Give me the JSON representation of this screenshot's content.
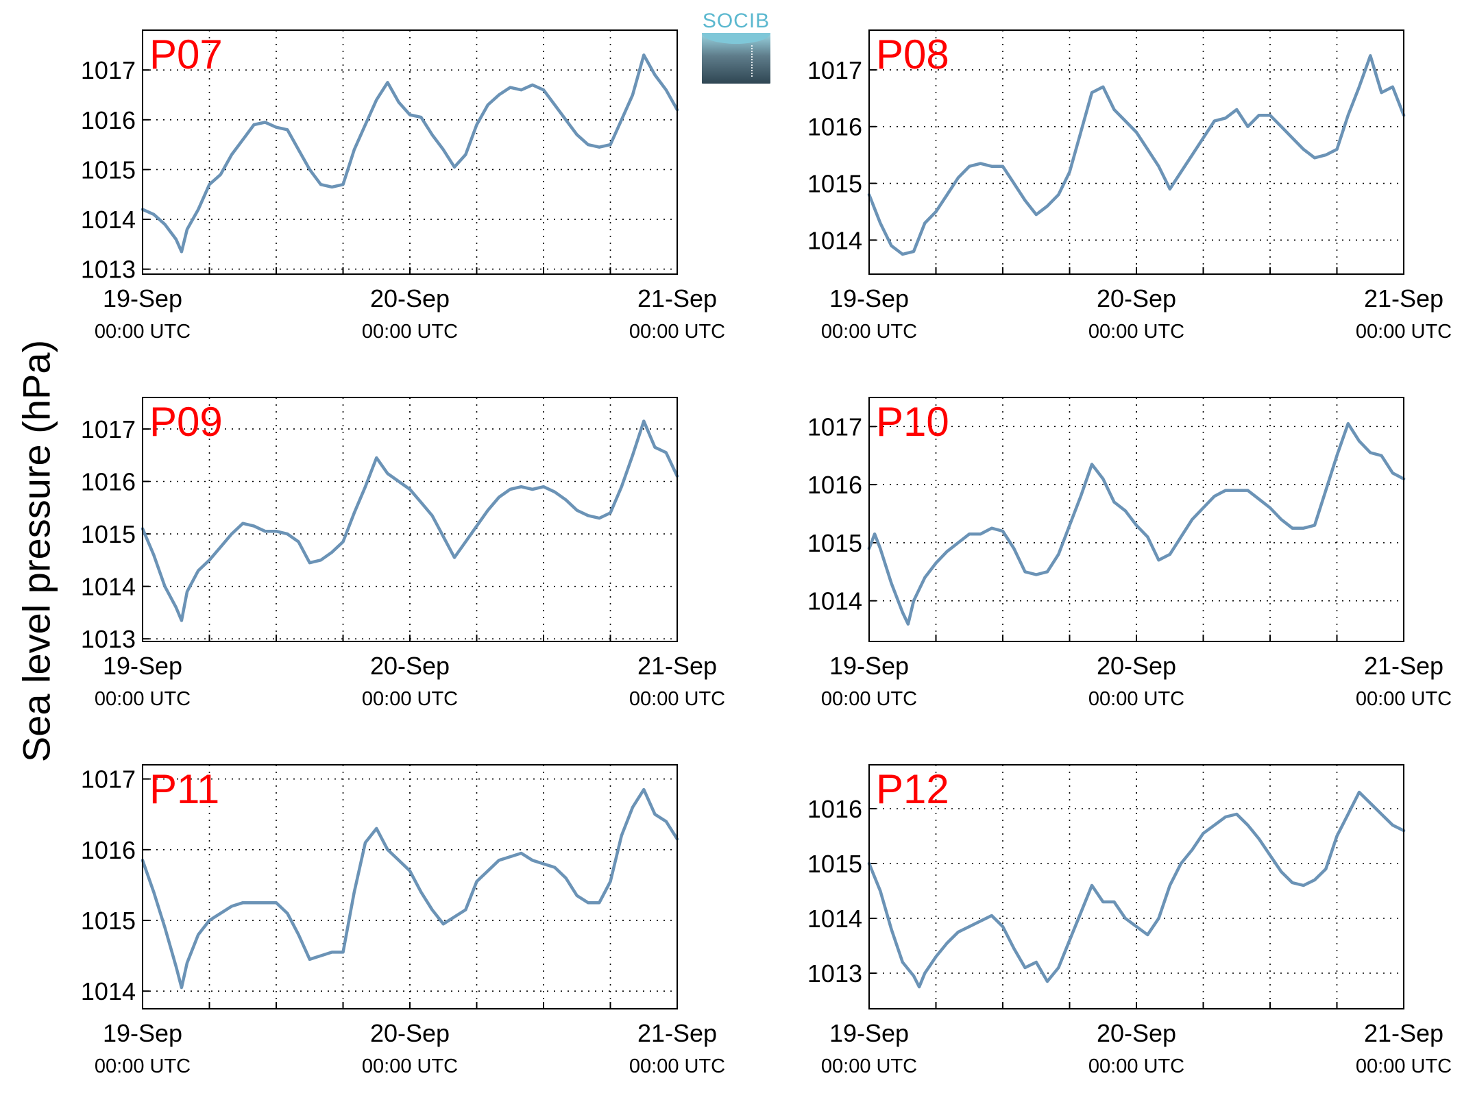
{
  "figure": {
    "ylabel": "Sea level pressure (hPa)",
    "logo_text": "SOCIB"
  },
  "style": {
    "line_color": "#6b93b6",
    "label_color": "#ff0000"
  },
  "chart_data": [
    {
      "type": "line",
      "label": "P07",
      "xlim": [
        0,
        48
      ],
      "ylim": [
        1012.9,
        1017.8
      ],
      "yticks": [
        1013,
        1014,
        1015,
        1016,
        1017
      ],
      "xticks": [
        {
          "x": 0,
          "label": "19-Sep",
          "sub": "00:00 UTC"
        },
        {
          "x": 24,
          "label": "20-Sep",
          "sub": "00:00 UTC"
        },
        {
          "x": 48,
          "label": "21-Sep",
          "sub": "00:00 UTC"
        }
      ],
      "grid_x": [
        6,
        12,
        18,
        24,
        30,
        36,
        42
      ],
      "x": [
        0,
        1,
        2,
        3,
        3.5,
        4,
        5,
        6,
        7,
        8,
        9,
        10,
        11,
        12,
        13,
        14,
        15,
        16,
        17,
        18,
        19,
        20,
        21,
        22,
        23,
        24,
        25,
        26,
        27,
        28,
        29,
        30,
        31,
        32,
        33,
        34,
        35,
        36,
        37,
        38,
        39,
        40,
        41,
        42,
        43,
        44,
        45,
        46,
        47,
        48
      ],
      "values": [
        1014.2,
        1014.1,
        1013.9,
        1013.6,
        1013.35,
        1013.8,
        1014.2,
        1014.7,
        1014.9,
        1015.3,
        1015.6,
        1015.9,
        1015.95,
        1015.85,
        1015.8,
        1015.4,
        1015.0,
        1014.7,
        1014.65,
        1014.7,
        1015.4,
        1015.9,
        1016.4,
        1016.75,
        1016.35,
        1016.1,
        1016.05,
        1015.7,
        1015.4,
        1015.05,
        1015.3,
        1015.9,
        1016.3,
        1016.5,
        1016.65,
        1016.6,
        1016.7,
        1016.6,
        1016.3,
        1016.0,
        1015.7,
        1015.5,
        1015.45,
        1015.5,
        1016.0,
        1016.5,
        1017.3,
        1016.9,
        1016.6,
        1016.2
      ]
    },
    {
      "type": "line",
      "label": "P08",
      "xlim": [
        0,
        48
      ],
      "ylim": [
        1013.4,
        1017.7
      ],
      "yticks": [
        1014,
        1015,
        1016,
        1017
      ],
      "xticks": [
        {
          "x": 0,
          "label": "19-Sep",
          "sub": "00:00 UTC"
        },
        {
          "x": 24,
          "label": "20-Sep",
          "sub": "00:00 UTC"
        },
        {
          "x": 48,
          "label": "21-Sep",
          "sub": "00:00 UTC"
        }
      ],
      "grid_x": [
        6,
        12,
        18,
        24,
        30,
        36,
        42
      ],
      "x": [
        0,
        1,
        2,
        3,
        4,
        5,
        6,
        7,
        8,
        9,
        10,
        11,
        12,
        13,
        14,
        15,
        16,
        17,
        18,
        19,
        20,
        21,
        22,
        23,
        24,
        25,
        26,
        27,
        28,
        29,
        30,
        31,
        32,
        33,
        34,
        35,
        36,
        37,
        38,
        39,
        40,
        41,
        42,
        43,
        44,
        45,
        46,
        47,
        48
      ],
      "values": [
        1014.8,
        1014.3,
        1013.9,
        1013.75,
        1013.8,
        1014.3,
        1014.5,
        1014.8,
        1015.1,
        1015.3,
        1015.35,
        1015.3,
        1015.3,
        1015.0,
        1014.7,
        1014.45,
        1014.6,
        1014.8,
        1015.2,
        1015.9,
        1016.6,
        1016.7,
        1016.3,
        1016.1,
        1015.9,
        1015.6,
        1015.3,
        1014.9,
        1015.2,
        1015.5,
        1015.8,
        1016.1,
        1016.15,
        1016.3,
        1016.0,
        1016.2,
        1016.2,
        1016.0,
        1015.8,
        1015.6,
        1015.45,
        1015.5,
        1015.6,
        1016.2,
        1016.7,
        1017.25,
        1016.6,
        1016.7,
        1016.2
      ]
    },
    {
      "type": "line",
      "label": "P09",
      "xlim": [
        0,
        48
      ],
      "ylim": [
        1012.95,
        1017.6
      ],
      "yticks": [
        1013,
        1014,
        1015,
        1016,
        1017
      ],
      "xticks": [
        {
          "x": 0,
          "label": "19-Sep",
          "sub": "00:00 UTC"
        },
        {
          "x": 24,
          "label": "20-Sep",
          "sub": "00:00 UTC"
        },
        {
          "x": 48,
          "label": "21-Sep",
          "sub": "00:00 UTC"
        }
      ],
      "grid_x": [
        6,
        12,
        18,
        24,
        30,
        36,
        42
      ],
      "x": [
        0,
        1,
        2,
        3,
        3.5,
        4,
        5,
        6,
        7,
        8,
        9,
        10,
        11,
        12,
        13,
        14,
        15,
        16,
        17,
        18,
        19,
        20,
        21,
        22,
        23,
        24,
        25,
        26,
        27,
        28,
        29,
        30,
        31,
        32,
        33,
        34,
        35,
        36,
        37,
        38,
        39,
        40,
        41,
        42,
        43,
        44,
        45,
        46,
        47,
        48
      ],
      "values": [
        1015.1,
        1014.6,
        1014.0,
        1013.6,
        1013.35,
        1013.9,
        1014.3,
        1014.5,
        1014.75,
        1015.0,
        1015.2,
        1015.15,
        1015.05,
        1015.05,
        1015.0,
        1014.85,
        1014.45,
        1014.5,
        1014.65,
        1014.85,
        1015.4,
        1015.9,
        1016.45,
        1016.15,
        1016.0,
        1015.85,
        1015.6,
        1015.35,
        1014.95,
        1014.55,
        1014.85,
        1015.15,
        1015.45,
        1015.7,
        1015.85,
        1015.9,
        1015.85,
        1015.9,
        1015.8,
        1015.65,
        1015.45,
        1015.35,
        1015.3,
        1015.4,
        1015.9,
        1016.5,
        1017.15,
        1016.65,
        1016.55,
        1016.1
      ]
    },
    {
      "type": "line",
      "label": "P10",
      "xlim": [
        0,
        48
      ],
      "ylim": [
        1013.3,
        1017.5
      ],
      "yticks": [
        1014,
        1015,
        1016,
        1017
      ],
      "xticks": [
        {
          "x": 0,
          "label": "19-Sep",
          "sub": "00:00 UTC"
        },
        {
          "x": 24,
          "label": "20-Sep",
          "sub": "00:00 UTC"
        },
        {
          "x": 48,
          "label": "21-Sep",
          "sub": "00:00 UTC"
        }
      ],
      "grid_x": [
        6,
        12,
        18,
        24,
        30,
        36,
        42
      ],
      "x": [
        0,
        0.5,
        1,
        2,
        3,
        3.5,
        4,
        5,
        6,
        7,
        8,
        9,
        10,
        11,
        12,
        13,
        14,
        15,
        16,
        17,
        18,
        19,
        20,
        21,
        22,
        23,
        24,
        25,
        26,
        27,
        28,
        29,
        30,
        31,
        32,
        33,
        34,
        35,
        36,
        37,
        38,
        39,
        40,
        41,
        42,
        43,
        44,
        45,
        46,
        47,
        48
      ],
      "values": [
        1014.9,
        1015.15,
        1014.9,
        1014.3,
        1013.8,
        1013.6,
        1014.0,
        1014.4,
        1014.65,
        1014.85,
        1015.0,
        1015.15,
        1015.15,
        1015.25,
        1015.2,
        1014.9,
        1014.5,
        1014.45,
        1014.5,
        1014.8,
        1015.3,
        1015.8,
        1016.35,
        1016.1,
        1015.7,
        1015.55,
        1015.3,
        1015.1,
        1014.7,
        1014.8,
        1015.1,
        1015.4,
        1015.6,
        1015.8,
        1015.9,
        1015.9,
        1015.9,
        1015.75,
        1015.6,
        1015.4,
        1015.25,
        1015.25,
        1015.3,
        1015.9,
        1016.5,
        1017.05,
        1016.75,
        1016.55,
        1016.5,
        1016.2,
        1016.1
      ]
    },
    {
      "type": "line",
      "label": "P11",
      "xlim": [
        0,
        48
      ],
      "ylim": [
        1013.75,
        1017.2
      ],
      "yticks": [
        1014,
        1015,
        1016,
        1017
      ],
      "xticks": [
        {
          "x": 0,
          "label": "19-Sep",
          "sub": "00:00 UTC"
        },
        {
          "x": 24,
          "label": "20-Sep",
          "sub": "00:00 UTC"
        },
        {
          "x": 48,
          "label": "21-Sep",
          "sub": "00:00 UTC"
        }
      ],
      "grid_x": [
        6,
        12,
        18,
        24,
        30,
        36,
        42
      ],
      "x": [
        0,
        1,
        2,
        3,
        3.5,
        4,
        5,
        6,
        7,
        8,
        9,
        10,
        11,
        12,
        13,
        14,
        15,
        16,
        17,
        18,
        19,
        20,
        21,
        22,
        23,
        24,
        25,
        26,
        27,
        28,
        29,
        30,
        31,
        32,
        33,
        34,
        35,
        36,
        37,
        38,
        39,
        40,
        41,
        42,
        43,
        44,
        45,
        46,
        47,
        48
      ],
      "values": [
        1015.85,
        1015.4,
        1014.9,
        1014.35,
        1014.05,
        1014.4,
        1014.8,
        1015.0,
        1015.1,
        1015.2,
        1015.25,
        1015.25,
        1015.25,
        1015.25,
        1015.1,
        1014.8,
        1014.45,
        1014.5,
        1014.55,
        1014.55,
        1015.4,
        1016.1,
        1016.3,
        1016.0,
        1015.85,
        1015.7,
        1015.4,
        1015.15,
        1014.95,
        1015.05,
        1015.15,
        1015.55,
        1015.7,
        1015.85,
        1015.9,
        1015.95,
        1015.85,
        1015.8,
        1015.75,
        1015.6,
        1015.35,
        1015.25,
        1015.25,
        1015.55,
        1016.2,
        1016.6,
        1016.85,
        1016.5,
        1016.4,
        1016.15
      ]
    },
    {
      "type": "line",
      "label": "P12",
      "xlim": [
        0,
        48
      ],
      "ylim": [
        1012.35,
        1016.8
      ],
      "yticks": [
        1013,
        1014,
        1015,
        1016
      ],
      "xticks": [
        {
          "x": 0,
          "label": "19-Sep",
          "sub": "00:00 UTC"
        },
        {
          "x": 24,
          "label": "20-Sep",
          "sub": "00:00 UTC"
        },
        {
          "x": 48,
          "label": "21-Sep",
          "sub": "00:00 UTC"
        }
      ],
      "grid_x": [
        6,
        12,
        18,
        24,
        30,
        36,
        42
      ],
      "x": [
        0,
        1,
        2,
        3,
        4,
        4.5,
        5,
        6,
        7,
        8,
        9,
        10,
        11,
        12,
        13,
        14,
        15,
        16,
        17,
        18,
        19,
        20,
        21,
        22,
        23,
        24,
        25,
        26,
        27,
        28,
        29,
        30,
        31,
        32,
        33,
        34,
        35,
        36,
        37,
        38,
        39,
        40,
        41,
        42,
        43,
        44,
        45,
        46,
        47,
        48
      ],
      "values": [
        1015.0,
        1014.5,
        1013.8,
        1013.2,
        1012.95,
        1012.75,
        1013.0,
        1013.3,
        1013.55,
        1013.75,
        1013.85,
        1013.95,
        1014.05,
        1013.85,
        1013.45,
        1013.1,
        1013.2,
        1012.85,
        1013.1,
        1013.6,
        1014.1,
        1014.6,
        1014.3,
        1014.3,
        1014.0,
        1013.85,
        1013.7,
        1014.0,
        1014.6,
        1015.0,
        1015.25,
        1015.55,
        1015.7,
        1015.85,
        1015.9,
        1015.7,
        1015.45,
        1015.15,
        1014.85,
        1014.65,
        1014.6,
        1014.7,
        1014.9,
        1015.5,
        1015.9,
        1016.3,
        1016.1,
        1015.9,
        1015.7,
        1015.6
      ]
    }
  ]
}
